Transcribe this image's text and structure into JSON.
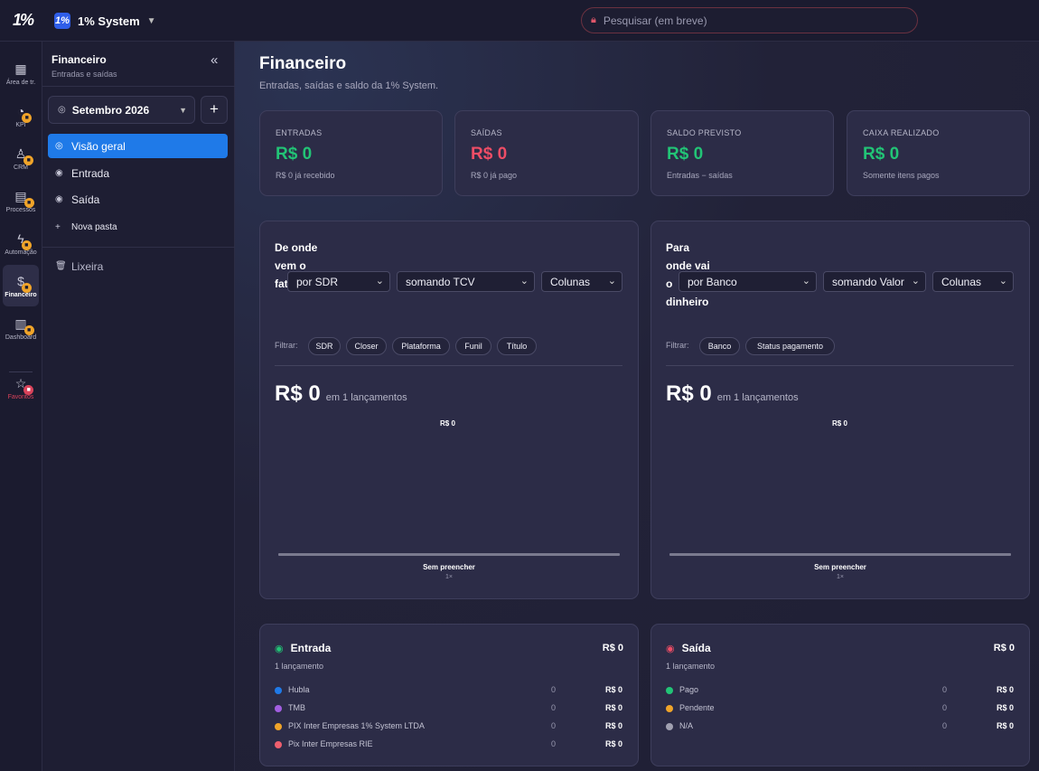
{
  "app": {
    "logo": "1%",
    "workspace_badge": "1%",
    "workspace_name": "1% System"
  },
  "search": {
    "placeholder": "Pesquisar (em breve)"
  },
  "rail": [
    {
      "label": "Área de tr.",
      "icon": "grid-icon"
    },
    {
      "label": "KPI",
      "icon": "kpi-icon"
    },
    {
      "label": "CRM",
      "icon": "crm-icon"
    },
    {
      "label": "Processos",
      "icon": "processos-icon"
    },
    {
      "label": "Automação",
      "icon": "automacao-icon"
    },
    {
      "label": "Financeiro",
      "icon": "financeiro-icon"
    },
    {
      "label": "Dashboard",
      "icon": "dashboard-icon"
    },
    {
      "label": "Favoritos",
      "icon": "star-icon"
    }
  ],
  "sidebar": {
    "title": "Financeiro",
    "subtitle": "Entradas e saídas",
    "month": "Setembro 2026",
    "items": [
      {
        "label": "Visão geral"
      },
      {
        "label": "Entrada"
      },
      {
        "label": "Saída"
      },
      {
        "label": "Nova pasta"
      },
      {
        "label": "Lixeira"
      }
    ]
  },
  "page": {
    "title": "Financeiro",
    "subtitle": "Entradas, saídas e saldo da 1% System."
  },
  "stats": [
    {
      "label": "ENTRADAS",
      "value": "R$ 0",
      "note": "R$ 0 já recebido",
      "color": "#22c476"
    },
    {
      "label": "SAÍDAS",
      "value": "R$ 0",
      "note": "R$ 0 já pago",
      "color": "#ee4d66"
    },
    {
      "label": "SALDO PREVISTO",
      "value": "R$ 0",
      "note": "Entradas − saídas",
      "color": "#22c476"
    },
    {
      "label": "CAIXA REALIZADO",
      "value": "R$ 0",
      "note": "Somente itens pagos",
      "color": "#22c476"
    }
  ],
  "charts": [
    {
      "title": "De onde vem o faturamento",
      "group": "por SDR",
      "metric": "somando TCV",
      "view": "Colunas",
      "filter_label": "Filtrar:",
      "filters": [
        "SDR",
        "Closer",
        "Plataforma",
        "Funil",
        "Título"
      ],
      "total": "R$ 0",
      "total_suffix": "em 1 lançamentos",
      "bar_value": "R$ 0",
      "bar_category": "Sem preencher",
      "bar_count": "1×"
    },
    {
      "title": "Para onde vai o dinheiro",
      "group": "por Banco",
      "metric": "somando Valor",
      "view": "Colunas",
      "filter_label": "Filtrar:",
      "filters": [
        "Banco",
        "Status pagamento"
      ],
      "total": "R$ 0",
      "total_suffix": "em 1 lançamentos",
      "bar_value": "R$ 0",
      "bar_category": "Sem preencher",
      "bar_count": "1×"
    }
  ],
  "chart_data": [
    {
      "type": "bar",
      "categories": [
        "Sem preencher"
      ],
      "values": [
        0
      ],
      "title": "De onde vem o faturamento"
    },
    {
      "type": "bar",
      "categories": [
        "Sem preencher"
      ],
      "values": [
        0
      ],
      "title": "Para onde vai o dinheiro"
    }
  ],
  "breakdowns": [
    {
      "title": "Entrada",
      "total": "R$ 0",
      "count": "1 lançamento",
      "icon_color": "#22c476",
      "rows": [
        {
          "name": "Hubla",
          "count": "0",
          "amount": "R$ 0",
          "color": "#1f7ae8"
        },
        {
          "name": "TMB",
          "count": "0",
          "amount": "R$ 0",
          "color": "#a25ee0"
        },
        {
          "name": "PIX Inter Empresas 1% System LTDA",
          "count": "0",
          "amount": "R$ 0",
          "color": "#f0a429"
        },
        {
          "name": "Pix Inter Empresas RIE",
          "count": "0",
          "amount": "R$ 0",
          "color": "#ee5f6e"
        }
      ]
    },
    {
      "title": "Saída",
      "total": "R$ 0",
      "count": "1 lançamento",
      "icon_color": "#ee4d66",
      "rows": [
        {
          "name": "Pago",
          "count": "0",
          "amount": "R$ 0",
          "color": "#22c476"
        },
        {
          "name": "Pendente",
          "count": "0",
          "amount": "R$ 0",
          "color": "#f0a429"
        },
        {
          "name": "N/A",
          "count": "0",
          "amount": "R$ 0",
          "color": "#a0a0b0"
        }
      ]
    }
  ]
}
